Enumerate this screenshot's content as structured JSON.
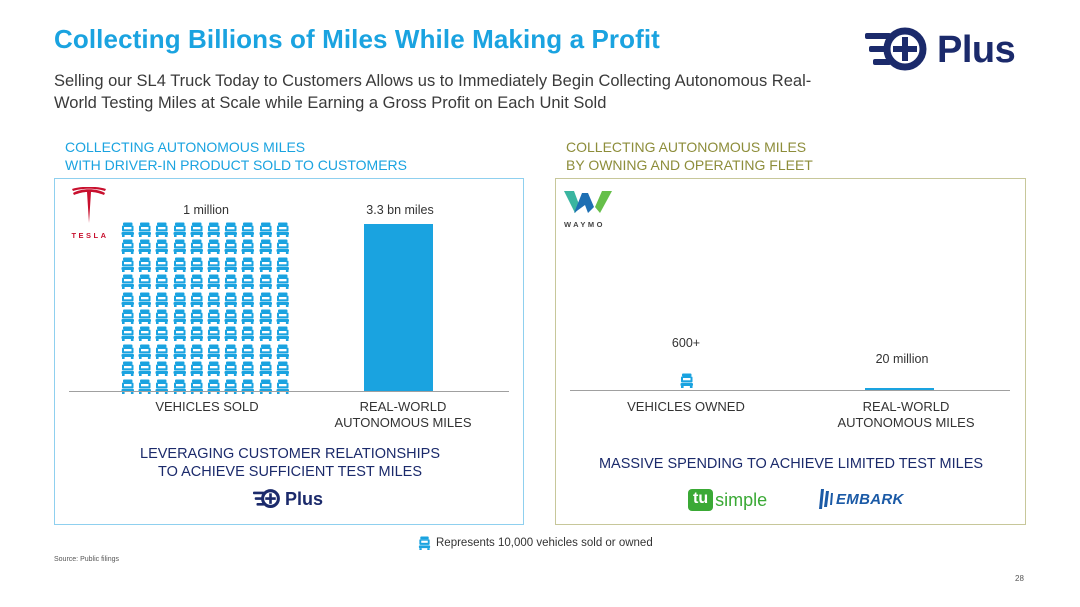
{
  "header": {
    "title": "Collecting Billions of Miles While Making a Profit",
    "subtitle": "Selling our SL4 Truck Today to Customers Allows us to Immediately Begin Collecting Autonomous Real-World Testing Miles at Scale while Earning a Gross Profit on Each Unit Sold"
  },
  "brand": {
    "name": "Plus",
    "color": "#1b2a6b"
  },
  "left_panel": {
    "heading_line1": "COLLECTING AUTONOMOUS MILES",
    "heading_line2": "WITH DRIVER-IN PRODUCT SOLD TO CUSTOMERS",
    "logo_text": "TESLA",
    "vehicles_value_label": "1 million",
    "miles_value_label": "3.3 bn miles",
    "vehicles_icon_count": 100,
    "cat_vehicles": "VEHICLES SOLD",
    "cat_miles_line1": "REAL-WORLD",
    "cat_miles_line2": "AUTONOMOUS MILES",
    "message_line1": "LEVERAGING CUSTOMER RELATIONSHIPS",
    "message_line2": "TO ACHIEVE SUFFICIENT TEST MILES",
    "footer_logo": "Plus"
  },
  "right_panel": {
    "heading_line1": "COLLECTING AUTONOMOUS MILES",
    "heading_line2": "BY OWNING AND OPERATING FLEET",
    "logo_text": "WAYMO",
    "vehicles_value_label": "600+",
    "miles_value_label": "20 million",
    "vehicles_icon_count": 1,
    "cat_vehicles": "VEHICLES OWNED",
    "cat_miles_line1": "REAL-WORLD",
    "cat_miles_line2": "AUTONOMOUS MILES",
    "message": "MASSIVE SPENDING TO ACHIEVE LIMITED TEST MILES",
    "logo_tu": "tu",
    "logo_simple": "simple",
    "logo_embark": "EMBARK"
  },
  "chart_data": {
    "type": "bar",
    "categories": [
      "Tesla (driver-in product sold)",
      "Waymo (owned fleet)"
    ],
    "series": [
      {
        "name": "Vehicles",
        "values": [
          1000000,
          600
        ]
      },
      {
        "name": "Real-world autonomous miles",
        "values": [
          3300000000,
          20000000
        ]
      }
    ],
    "unit_icon_represents": 10000
  },
  "footer": {
    "legend_text": "Represents 10,000 vehicles sold or owned",
    "source": "Source: Public filings",
    "page_number": "28"
  },
  "colors": {
    "accent": "#1aa3e0",
    "navy": "#1b2a6b",
    "olive": "#8d8d3a"
  }
}
